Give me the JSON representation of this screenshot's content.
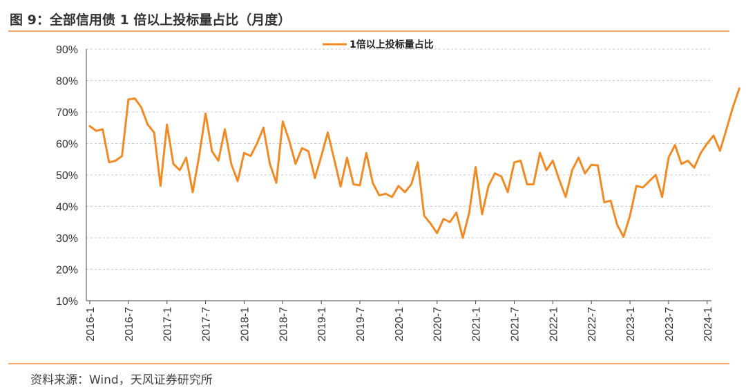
{
  "title": "图 9：全部信用债 1 倍以上投标量占比（月度）",
  "source": "资料来源：Wind，天风证券研究所",
  "colors": {
    "line": "#F08A24",
    "rule": "#F7A868",
    "grid": "#C8C8C8",
    "axis": "#444444"
  },
  "chart_data": {
    "type": "line",
    "title": "",
    "xlabel": "",
    "ylabel": "",
    "ylim": [
      10,
      90
    ],
    "y_ticks": [
      "10%",
      "20%",
      "30%",
      "40%",
      "50%",
      "60%",
      "70%",
      "80%",
      "90%"
    ],
    "y_tick_values": [
      10,
      20,
      30,
      40,
      50,
      60,
      70,
      80,
      90
    ],
    "x_tick_labels": [
      "2016-1",
      "2016-7",
      "2017-1",
      "2017-7",
      "2018-1",
      "2018-7",
      "2019-1",
      "2019-7",
      "2020-1",
      "2020-7",
      "2021-1",
      "2021-7",
      "2022-1",
      "2022-7",
      "2023-1",
      "2023-7",
      "2024-1"
    ],
    "x_start": "2016-1",
    "grid": "horizontal dashed",
    "legend_position": "top-center",
    "series": [
      {
        "name": "1倍以上投标量占比",
        "values": [
          65.5,
          64,
          64.5,
          54,
          54.5,
          56,
          74,
          74.3,
          71.5,
          66,
          63.5,
          46.5,
          66,
          53.5,
          51.5,
          55.5,
          44.5,
          56,
          69.5,
          57.5,
          54.5,
          64.5,
          53.5,
          48,
          57,
          56,
          60,
          65,
          53.5,
          47.5,
          67,
          61,
          53.5,
          58.5,
          57.5,
          49,
          56,
          63.5,
          55,
          46.3,
          55.5,
          47,
          46.7,
          57,
          47.5,
          43.5,
          44,
          43,
          46.5,
          44.5,
          47,
          54,
          37,
          34.5,
          31.5,
          36,
          35,
          38,
          30,
          38,
          52.5,
          37.5,
          46.5,
          50.5,
          49.5,
          44.5,
          54,
          54.5,
          47,
          47,
          57,
          51.5,
          54.5,
          48.5,
          43,
          51.5,
          55.5,
          50.5,
          53.2,
          53,
          41.3,
          41.8,
          34.2,
          30.3,
          37,
          46.5,
          46,
          48,
          50,
          43,
          55.5,
          59.5,
          53.5,
          54.5,
          52.3,
          57,
          60,
          62.5,
          57.7,
          64.5,
          71.5,
          77.5
        ]
      }
    ]
  }
}
